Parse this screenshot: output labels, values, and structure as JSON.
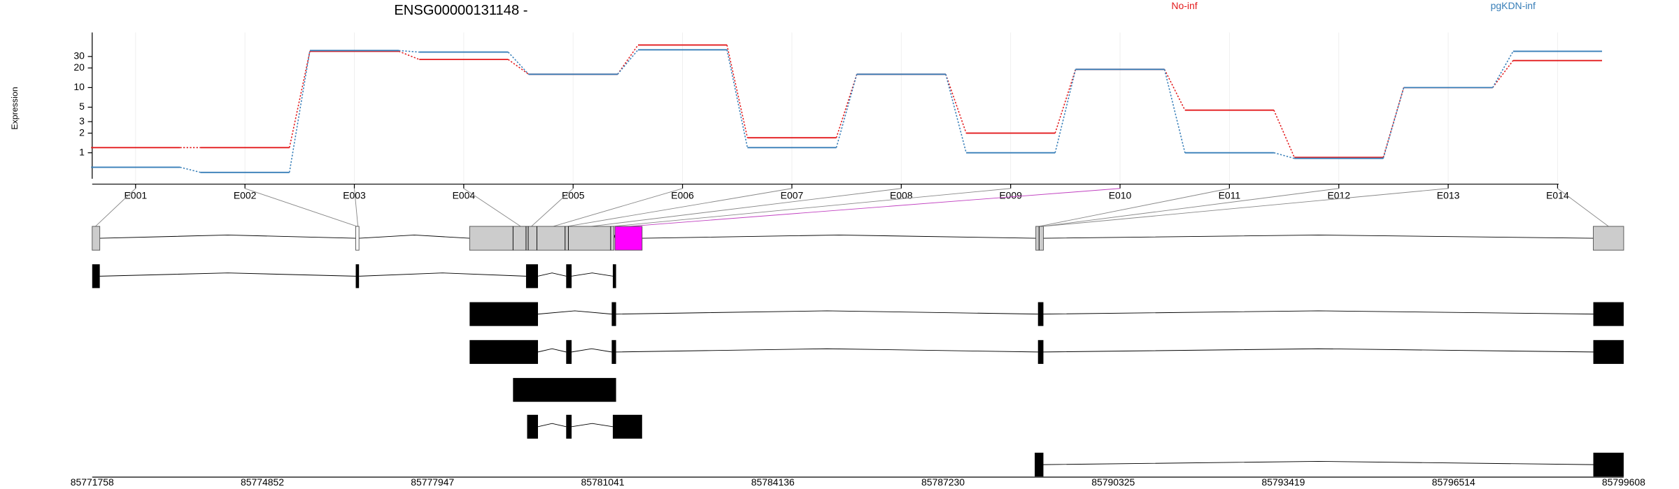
{
  "chart_data": {
    "type": "line",
    "title": "ENSG00000131148 -",
    "y_label": "Expression",
    "categories": [
      "E001",
      "E002",
      "E003",
      "E004",
      "E005",
      "E006",
      "E007",
      "E008",
      "E009",
      "E010",
      "E011",
      "E012",
      "E013",
      "E014"
    ],
    "series": [
      {
        "name": "No-inf",
        "color": "#e31a1c",
        "values": [
          1.2,
          1.2,
          36,
          27,
          16,
          45,
          1.7,
          16,
          2,
          19,
          4.5,
          0.85,
          10,
          26
        ]
      },
      {
        "name": "pgKDN-inf",
        "color": "#377eb8",
        "values": [
          0.6,
          0.5,
          37,
          35,
          16,
          38,
          1.2,
          16,
          1,
          19,
          1,
          0.82,
          10,
          36
        ]
      }
    ],
    "log_scale": true,
    "ylim": [
      0.4,
      70
    ],
    "yticks": [
      1,
      2,
      3,
      5,
      10,
      20,
      30
    ],
    "grid": true,
    "legend": "top"
  },
  "gene_model": {
    "coord_ticks": [
      85771758,
      85774852,
      85777947,
      85781041,
      85784136,
      85787230,
      85790325,
      85793419,
      85796514,
      85799608
    ]
  }
}
